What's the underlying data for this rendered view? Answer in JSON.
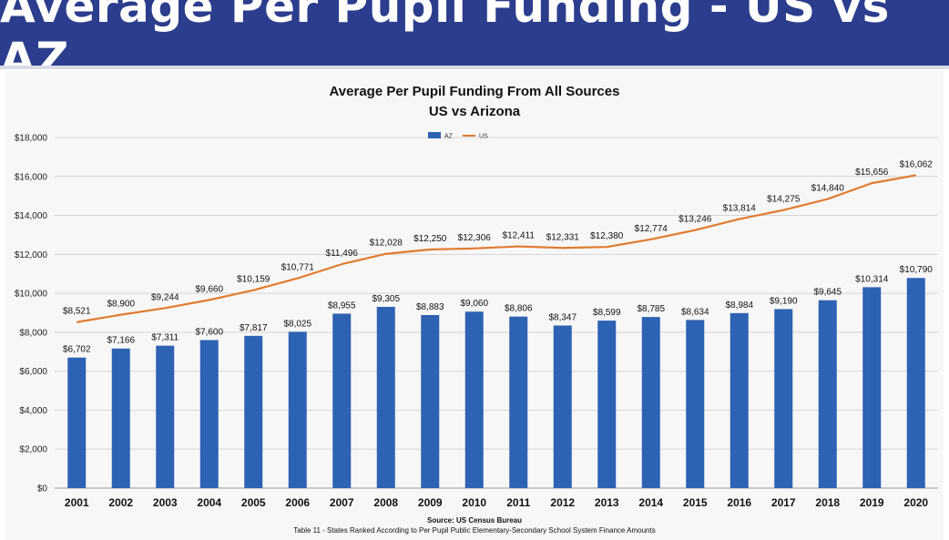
{
  "header": {
    "title": "Average Per Pupil Funding - US vs AZ"
  },
  "chart_data": {
    "type": "bar+line",
    "title": "Average Per Pupil Funding From All Sources",
    "subtitle": "US vs Arizona",
    "categories": [
      "2001",
      "2002",
      "2003",
      "2004",
      "2005",
      "2006",
      "2007",
      "2008",
      "2009",
      "2010",
      "2011",
      "2012",
      "2013",
      "2014",
      "2015",
      "2016",
      "2017",
      "2018",
      "2019",
      "2020"
    ],
    "series": [
      {
        "name": "AZ",
        "kind": "bar",
        "color": "#2e62b2",
        "values": [
          6702,
          7166,
          7311,
          7600,
          7817,
          8025,
          8955,
          9305,
          8883,
          9060,
          8806,
          8347,
          8599,
          8785,
          8634,
          8984,
          9190,
          9645,
          10314,
          10790
        ],
        "labels": [
          "$6,702",
          "$7,166",
          "$7,311",
          "$7,600",
          "$7,817",
          "$8,025",
          "$8,955",
          "$9,305",
          "$8,883",
          "$9,060",
          "$8,806",
          "$8,347",
          "$8,599",
          "$8,785",
          "$8,634",
          "$8,984",
          "$9,190",
          "$9,645",
          "$10,314",
          "$10,790"
        ]
      },
      {
        "name": "US",
        "kind": "line",
        "color": "#e07b2e",
        "values": [
          8521,
          8900,
          9244,
          9660,
          10159,
          10771,
          11496,
          12028,
          12250,
          12306,
          12411,
          12331,
          12380,
          12774,
          13246,
          13814,
          14275,
          14840,
          15656,
          16062
        ],
        "labels": [
          "$8,521",
          "$8,900",
          "$9,244",
          "$9,660",
          "$10,159",
          "$10,771",
          "$11,496",
          "$12,028",
          "$12,250",
          "$12,306",
          "$12,411",
          "$12,331",
          "$12,380",
          "$12,774",
          "$13,246",
          "$13,814",
          "$14,275",
          "$14,840",
          "$15,656",
          "$16,062"
        ]
      }
    ],
    "ylim": [
      0,
      18000
    ],
    "yticks": [
      0,
      2000,
      4000,
      6000,
      8000,
      10000,
      12000,
      14000,
      16000,
      18000
    ],
    "ytick_labels": [
      "$0",
      "$2,000",
      "$4,000",
      "$6,000",
      "$8,000",
      "$10,000",
      "$12,000",
      "$14,000",
      "$16,000",
      "$18,000"
    ],
    "grid": true,
    "legend_position": "top-center"
  },
  "footer": {
    "source": "Source: US Census Bureau",
    "table_note": "Table 11 - States Ranked According to Per Pupil Public Elementary-Secondary School System Finance Amounts"
  }
}
